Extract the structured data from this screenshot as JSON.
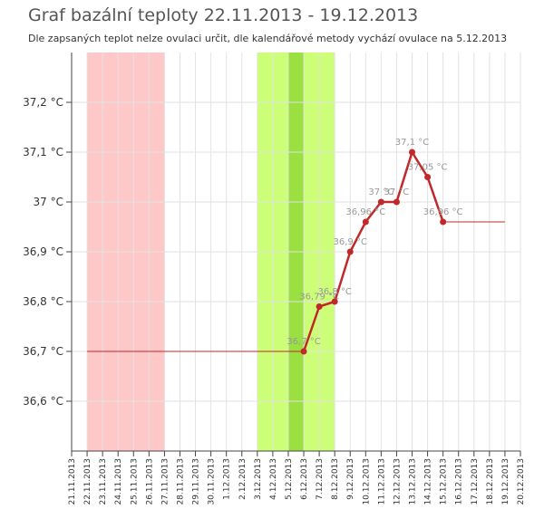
{
  "chart_data": {
    "type": "line",
    "title": "Graf bazální teploty 22.11.2013 - 19.12.2013",
    "subtitle": "Dle zapsaných teplot nelze ovulaci určit, dle kalendářové metody vychází ovulace na 5.12.2013",
    "y_unit": "°C",
    "ylim": [
      36.5,
      37.3
    ],
    "y_ticks": [
      "36,6 °C",
      "36,7 °C",
      "36,8 °C",
      "36,9 °C",
      "37 °C",
      "37,1 °C",
      "37,2 °C"
    ],
    "x_ticks": [
      "21.11.2013",
      "22.11.2013",
      "23.11.2013",
      "24.11.2013",
      "25.11.2013",
      "26.11.2013",
      "27.11.2013",
      "28.11.2013",
      "29.11.2013",
      "30.11.2013",
      "1.12.2013",
      "2.12.2013",
      "3.12.2013",
      "4.12.2013",
      "5.12.2013",
      "6.12.2013",
      "7.12.2013",
      "8.12.2013",
      "9.12.2013",
      "10.12.2013",
      "11.12.2013",
      "12.12.2013",
      "13.12.2013",
      "14.12.2013",
      "15.12.2013",
      "16.12.2013",
      "17.12.2013",
      "18.12.2013",
      "19.12.2013",
      "20.12.2013"
    ],
    "bands": [
      {
        "from": "22.11.2013",
        "to": "27.11.2013",
        "color": "#ffc8c8"
      },
      {
        "from": "3.12.2013",
        "to": "8.12.2013",
        "color": "#ccff77"
      },
      {
        "from": "5.12.2013",
        "to": "6.12.2013",
        "color": "#99e040"
      }
    ],
    "baseline_before": {
      "from": "22.11.2013",
      "to": "6.12.2013",
      "value": 36.7
    },
    "baseline_after": {
      "from": "15.12.2013",
      "to": "19.12.2013",
      "value": 36.96
    },
    "series": [
      {
        "color": "#c0282a",
        "points": [
          {
            "x": "6.12.2013",
            "y": 36.7,
            "label": "36,7 °C"
          },
          {
            "x": "7.12.2013",
            "y": 36.79,
            "label": "36,79 °C"
          },
          {
            "x": "8.12.2013",
            "y": 36.8,
            "label": "36,8 °C"
          },
          {
            "x": "9.12.2013",
            "y": 36.9,
            "label": "36,9 °C"
          },
          {
            "x": "10.12.2013",
            "y": 36.96,
            "label": "36,96 °C"
          },
          {
            "x": "11.12.2013",
            "y": 37.0,
            "label": "37 °C"
          },
          {
            "x": "12.12.2013",
            "y": 37.0,
            "label": "37 °C"
          },
          {
            "x": "13.12.2013",
            "y": 37.1,
            "label": "37,1 °C"
          },
          {
            "x": "14.12.2013",
            "y": 37.05,
            "label": "37,05 °C"
          },
          {
            "x": "15.12.2013",
            "y": 36.96,
            "label": "36,96 °C"
          }
        ]
      }
    ]
  }
}
